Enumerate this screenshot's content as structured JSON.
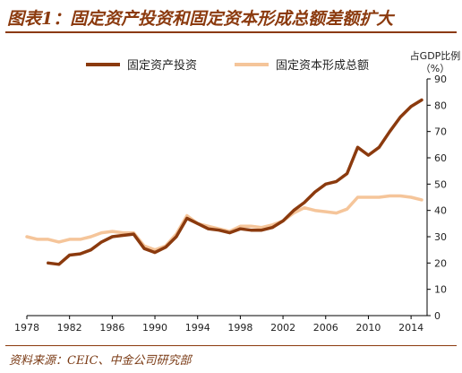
{
  "header": {
    "title": "图表1：固定资产投资和固定资本形成总额差额扩大"
  },
  "footer": {
    "source": "资料来源：CEIC、中金公司研究部"
  },
  "chart_data": {
    "type": "line",
    "title": "",
    "xlabel": "",
    "ylabel": "",
    "y_unit_line1": "占GDP比例",
    "y_unit_line2": "（%）",
    "ylim": [
      0,
      90
    ],
    "xlim": [
      1978,
      2015.5
    ],
    "y_ticks": [
      0,
      10,
      20,
      30,
      40,
      50,
      60,
      70,
      80,
      90
    ],
    "x_ticks": [
      1978,
      1982,
      1986,
      1990,
      1994,
      1998,
      2002,
      2006,
      2010,
      2014
    ],
    "y_axis_position": "right",
    "grid": false,
    "legend": {
      "placement": "top"
    },
    "series": [
      {
        "name": "固定资产投资",
        "color": "#8B3A0E",
        "x": [
          1980,
          1981,
          1982,
          1983,
          1984,
          1985,
          1986,
          1987,
          1988,
          1989,
          1990,
          1991,
          1992,
          1993,
          1994,
          1995,
          1996,
          1997,
          1998,
          1999,
          2000,
          2001,
          2002,
          2003,
          2004,
          2005,
          2006,
          2007,
          2008,
          2009,
          2010,
          2011,
          2012,
          2013,
          2014,
          2015
        ],
        "y": [
          20,
          19.5,
          23,
          23.5,
          25,
          28,
          30,
          30.5,
          31,
          25.5,
          24,
          26,
          30,
          37,
          35,
          33,
          32.5,
          31.5,
          33,
          32.5,
          32.5,
          33.5,
          36,
          40,
          43,
          47,
          50,
          51,
          54,
          64,
          61,
          64,
          70,
          75.5,
          79.5,
          82
        ]
      },
      {
        "name": "固定资本形成总额",
        "color": "#F5C59A",
        "x": [
          1978,
          1979,
          1980,
          1981,
          1982,
          1983,
          1984,
          1985,
          1986,
          1987,
          1988,
          1989,
          1990,
          1991,
          1992,
          1993,
          1994,
          1995,
          1996,
          1997,
          1998,
          1999,
          2000,
          2001,
          2002,
          2003,
          2004,
          2005,
          2006,
          2007,
          2008,
          2009,
          2010,
          2011,
          2012,
          2013,
          2014,
          2015
        ],
        "y": [
          30,
          29,
          29,
          28,
          29,
          29,
          30,
          31.5,
          32,
          31.5,
          31.5,
          26.5,
          25,
          26.5,
          31,
          38,
          35,
          34,
          33,
          32,
          34,
          34,
          33.5,
          34.5,
          36,
          39,
          41,
          40,
          39.5,
          39,
          40.5,
          45,
          45,
          45,
          45.5,
          45.5,
          45,
          44
        ]
      }
    ]
  }
}
